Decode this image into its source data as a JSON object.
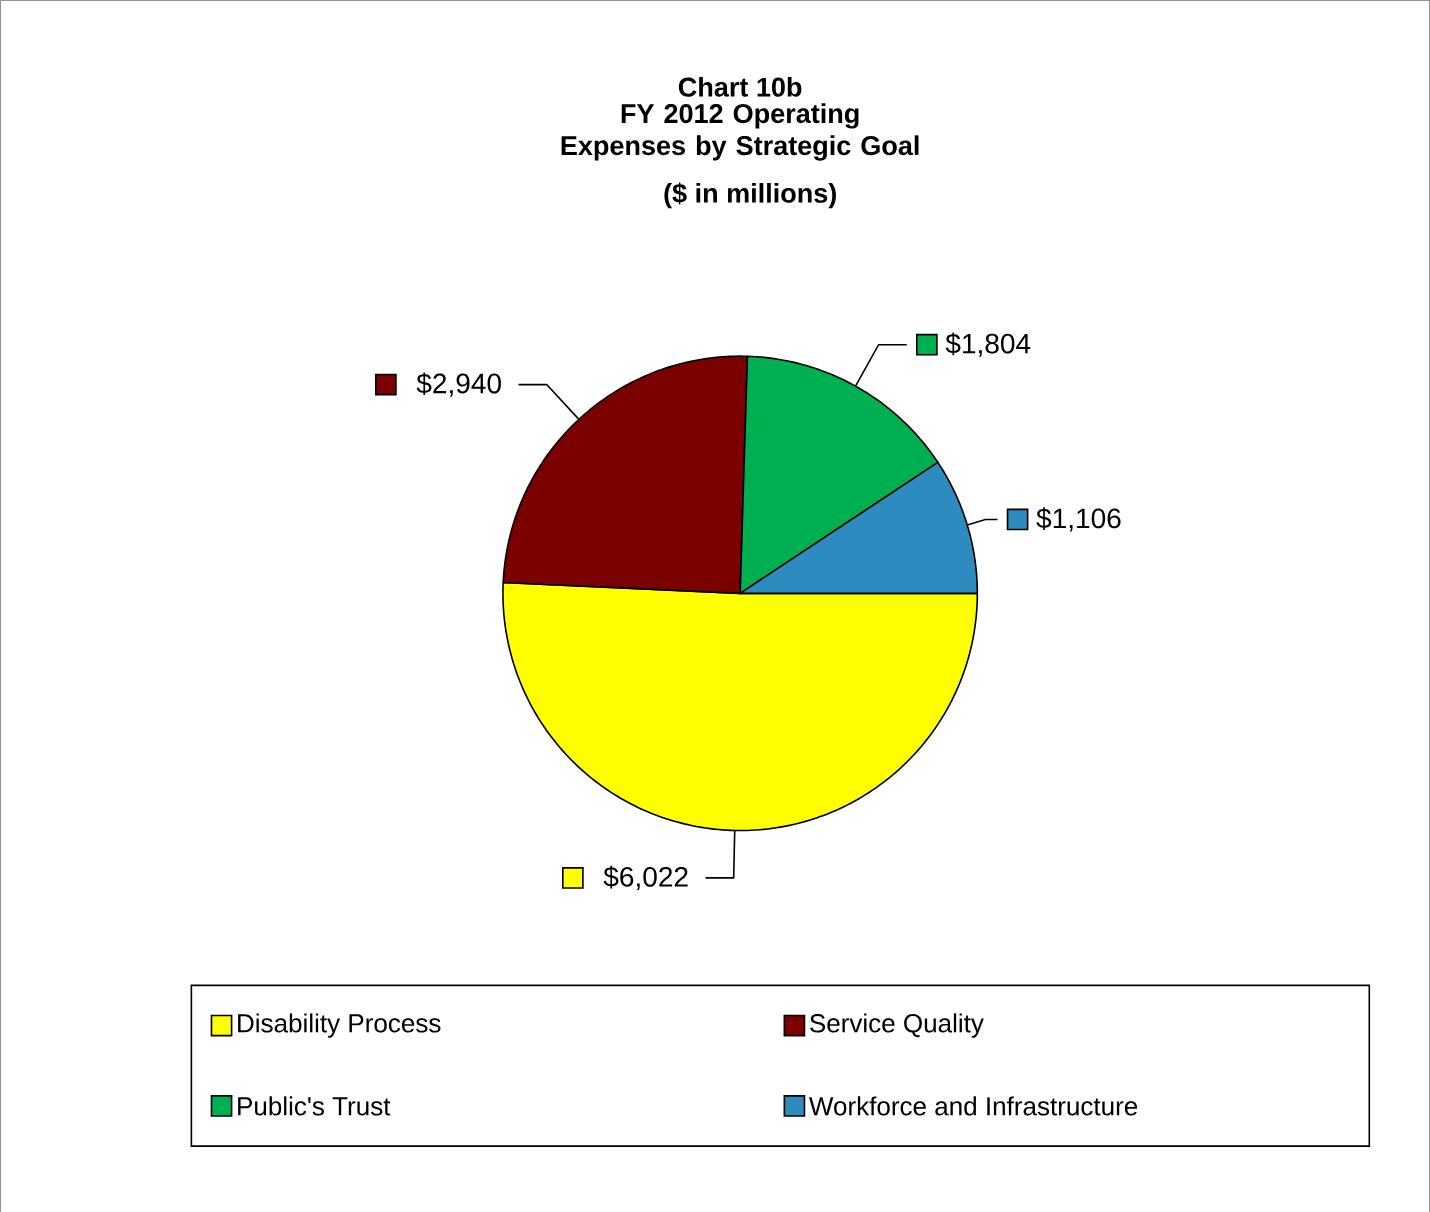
{
  "chart_data": {
    "type": "pie",
    "title": "Chart 10b",
    "subtitle": "FY 2012 Operating Expenses by Strategic Goal",
    "annotations": [
      "($ in millions)"
    ],
    "categories": [
      "Disability Process",
      "Service Quality",
      "Public's Trust",
      "Workforce and Infrastructure"
    ],
    "values": [
      6022,
      2940,
      1804,
      1106
    ],
    "value_labels": [
      "$6,022",
      "$2,940",
      "$1,804",
      "$1,106"
    ],
    "colors": [
      "#ffff00",
      "#7b0000",
      "#00b050",
      "#2e8bc0"
    ],
    "legend": "bottom"
  }
}
